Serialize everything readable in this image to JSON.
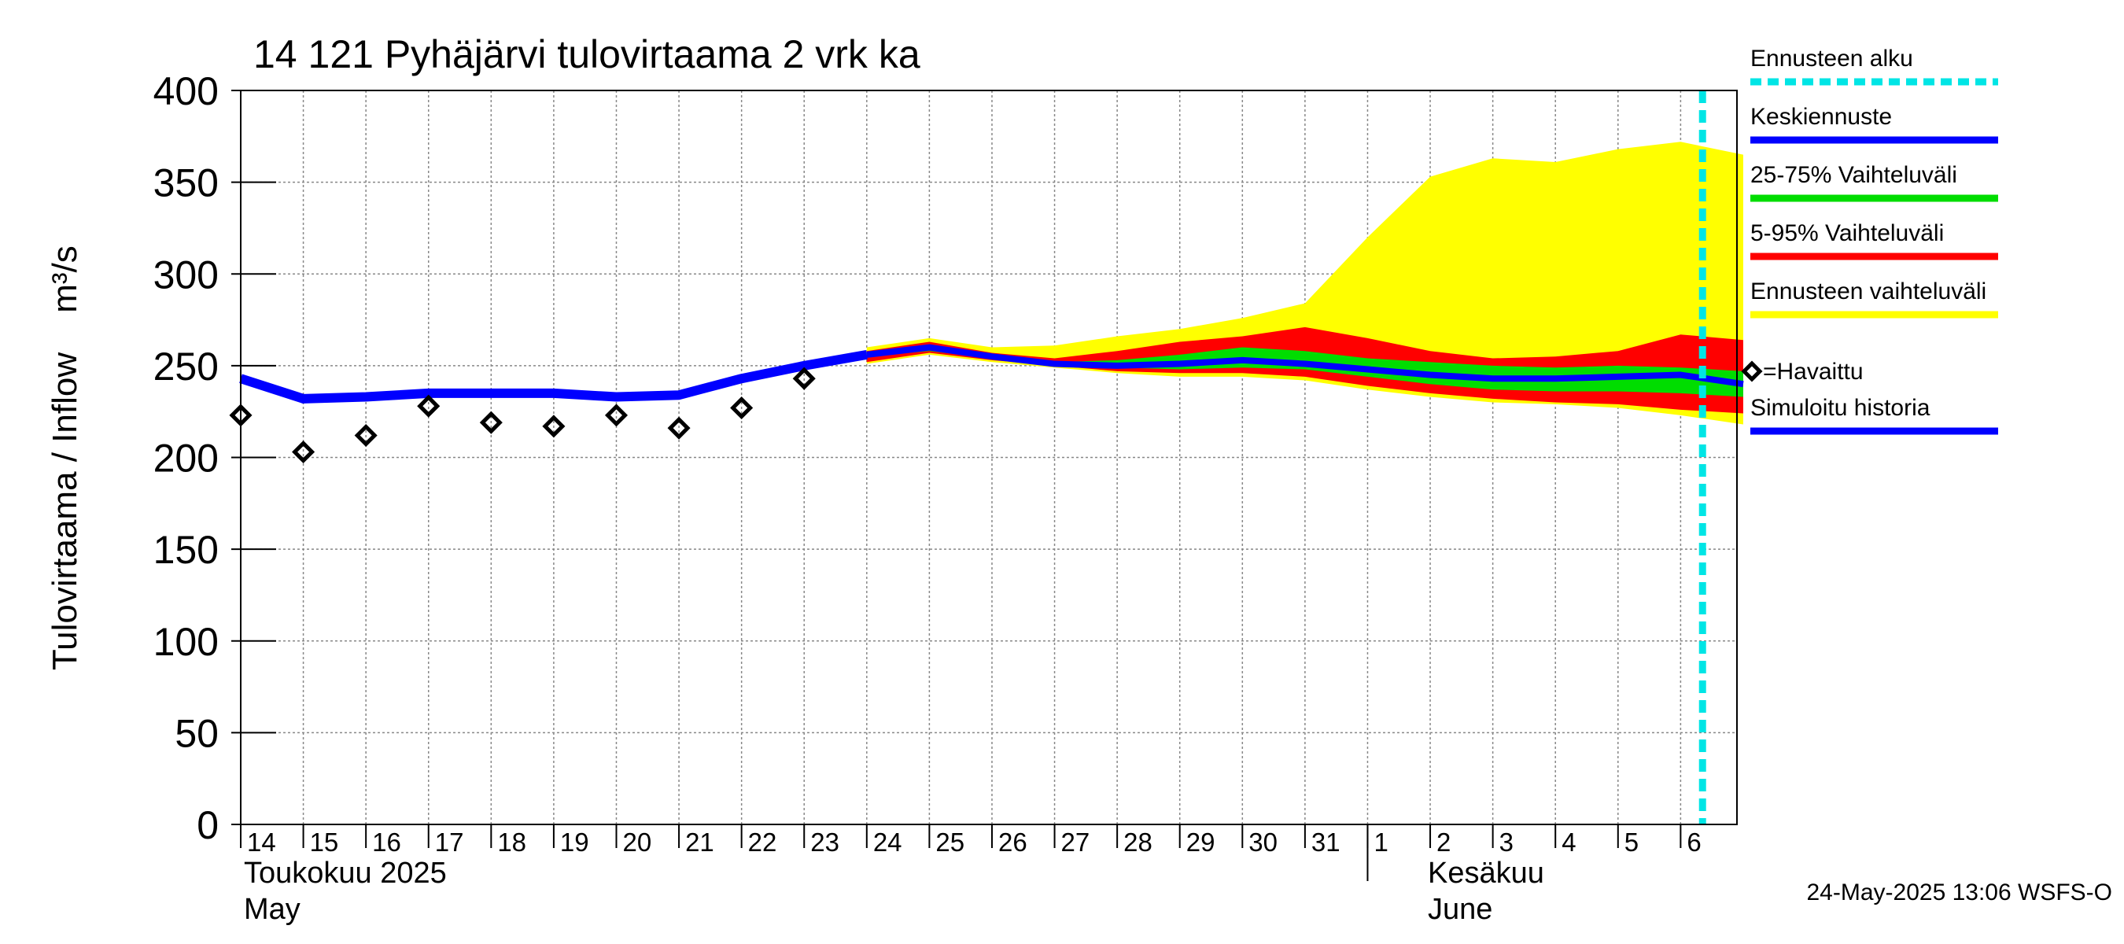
{
  "chart_data": {
    "type": "area",
    "title": "14 121 Pyhäjärvi tulovirtaama 2 vrk ka",
    "ylabel_main": "Tulovirtaama / Inflow",
    "ylabel_unit": "m³/s",
    "ylim": [
      0,
      400
    ],
    "y_ticks": [
      "0",
      "50",
      "100",
      "150",
      "200",
      "250",
      "300",
      "350",
      "400"
    ],
    "x_ticks": [
      "14",
      "15",
      "16",
      "17",
      "18",
      "19",
      "20",
      "21",
      "22",
      "23",
      "24",
      "25",
      "26",
      "27",
      "28",
      "29",
      "30",
      "31",
      "1",
      "2",
      "3",
      "4",
      "5",
      "6"
    ],
    "month_labels": {
      "may_fi": "Toukokuu  2025",
      "may_en": "May",
      "june_fi": "Kesäkuu",
      "june_en": "June"
    },
    "grid": true,
    "legend_placement": "right",
    "forecast_start_day": 23.35,
    "legend": [
      {
        "label": "Ennusteen alku",
        "color": "#00e5e5",
        "style": "dashed"
      },
      {
        "label": "Keskiennuste",
        "color": "#0000ff",
        "style": "line"
      },
      {
        "label": "25-75% Vaihteluväli",
        "color": "#00dd00",
        "style": "line"
      },
      {
        "label": "5-95% Vaihteluväli",
        "color": "#ff0000",
        "style": "line"
      },
      {
        "label": "Ennusteen vaihteluväli",
        "color": "#ffff00",
        "style": "line"
      },
      {
        "label": "=Havaittu",
        "color": "#000000",
        "style": "marker"
      },
      {
        "label": "Simuloitu historia",
        "color": "#0000ff",
        "style": "line"
      }
    ],
    "observed": {
      "name": "Havaittu",
      "x": [
        0,
        1,
        2,
        3,
        4,
        5,
        6,
        7,
        8,
        9
      ],
      "y": [
        223,
        203,
        212,
        228,
        219,
        217,
        223,
        216,
        227,
        243
      ]
    },
    "simulated_history": {
      "name": "Simuloitu historia",
      "x": [
        0,
        1,
        2,
        3,
        4,
        5,
        6,
        7,
        8,
        9,
        10
      ],
      "y": [
        243,
        232,
        233,
        235,
        235,
        235,
        233,
        234,
        243,
        250,
        256
      ]
    },
    "forecast_x": [
      10,
      11,
      12,
      13,
      14,
      15,
      16,
      17,
      18,
      19,
      20,
      21,
      22,
      23,
      24
    ],
    "forecast_median": {
      "name": "Keskiennuste",
      "y": [
        256,
        260,
        255,
        251,
        250,
        251,
        253,
        251,
        248,
        245,
        243,
        243,
        244,
        245,
        240
      ]
    },
    "band_25_75": {
      "name": "25-75% Vaihteluväli",
      "low": [
        255,
        258,
        254,
        251,
        249,
        248,
        249,
        248,
        244,
        240,
        237,
        236,
        236,
        235,
        233
      ],
      "high": [
        257,
        261,
        256,
        252,
        253,
        256,
        260,
        258,
        254,
        252,
        250,
        249,
        250,
        249,
        247
      ]
    },
    "band_5_95": {
      "name": "5-95% Vaihteluväli",
      "low": [
        252,
        257,
        253,
        250,
        247,
        246,
        246,
        244,
        239,
        235,
        232,
        230,
        229,
        226,
        224
      ]
    },
    "band_5_95_high": [
      258,
      263,
      257,
      254,
      258,
      263,
      266,
      271,
      265,
      258,
      254,
      255,
      258,
      267,
      264
    ],
    "band_full": {
      "name": "Ennusteen vaihteluväli",
      "low": [
        251,
        256,
        252,
        249,
        246,
        244,
        244,
        242,
        237,
        233,
        230,
        229,
        227,
        223,
        218
      ],
      "high": [
        260,
        265,
        260,
        261,
        266,
        270,
        276,
        284,
        320,
        353,
        363,
        361,
        368,
        372,
        365
      ]
    }
  },
  "footer": "24-May-2025 13:06 WSFS-O"
}
